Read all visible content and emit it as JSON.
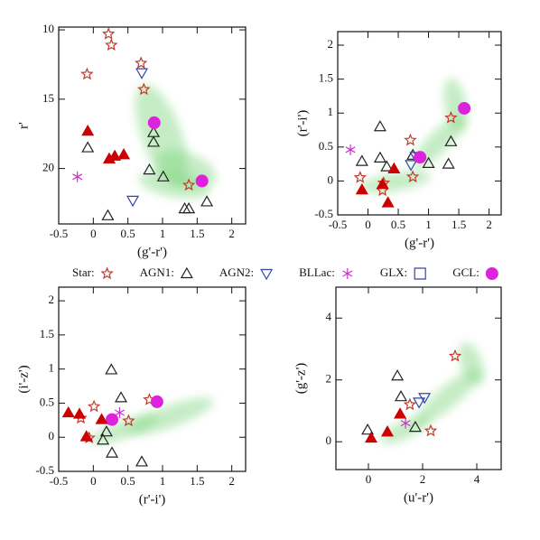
{
  "chart_data": [
    {
      "type": "scatter",
      "x_label": "(g'-r')",
      "y_label": "r'",
      "xlim": [
        -0.5,
        2.2
      ],
      "ylim": [
        24,
        9.8
      ],
      "xticks": [
        -0.5,
        0,
        0.5,
        1,
        1.5,
        2
      ],
      "yticks": [
        10,
        15,
        20
      ],
      "legend": "below",
      "series": [
        {
          "name": "Star:",
          "marker": "star",
          "color": "#c0392b",
          "x": [
            0.22,
            0.26,
            -0.09,
            0.69,
            0.73,
            1.38
          ],
          "values": [
            10.3,
            11.1,
            13.2,
            12.4,
            14.3,
            21.2
          ]
        },
        {
          "name": "AGN1:",
          "marker": "triangle",
          "color": "#222222",
          "x": [
            -0.08,
            0.87,
            0.87,
            0.81,
            1.01,
            0.21,
            1.32,
            1.38,
            1.64
          ],
          "values": [
            18.5,
            17.4,
            18.1,
            20.1,
            20.6,
            23.4,
            22.9,
            22.9,
            22.4
          ]
        },
        {
          "name": "AGN2:",
          "marker": "triangle-down",
          "color": "#3344aa",
          "x": [
            0.7,
            0.57
          ],
          "values": [
            13.1,
            22.3
          ]
        },
        {
          "name": "BLLac:",
          "marker": "asterisk",
          "color": "#cc33cc",
          "x": [
            -0.23
          ],
          "values": [
            20.6
          ]
        },
        {
          "name": "GLX:",
          "marker": "square",
          "color": "#3344aa",
          "x": [],
          "values": []
        },
        {
          "name": "GCL:",
          "marker": "circle",
          "color": "#dd22dd",
          "x": [
            0.88,
            1.57
          ],
          "values": [
            16.7,
            20.9
          ]
        },
        {
          "marker": "triangle-filled",
          "color": "#cc0000",
          "x": [
            -0.08,
            0.23,
            0.31,
            0.44
          ],
          "values": [
            17.3,
            19.3,
            19.1,
            19.0
          ]
        }
      ]
    },
    {
      "type": "scatter",
      "x_label": "(g'-r')",
      "y_label": "(r'-i')",
      "xlim": [
        -0.5,
        2.2
      ],
      "ylim": [
        -0.5,
        2.2
      ],
      "xticks": [
        -0.5,
        0,
        0.5,
        1,
        1.5,
        2
      ],
      "yticks": [
        -0.5,
        0,
        0.5,
        1,
        1.5,
        2
      ],
      "series": [
        {
          "marker": "star",
          "color": "#c0392b",
          "x": [
            0.7,
            -0.13,
            0.26,
            0.74,
            1.37,
            0.24
          ],
          "values": [
            0.6,
            0.05,
            -0.03,
            0.06,
            0.93,
            -0.14
          ]
        },
        {
          "marker": "triangle",
          "color": "#222222",
          "x": [
            0.2,
            -0.1,
            0.2,
            0.31,
            0.74,
            1.0,
            1.33,
            1.37
          ],
          "values": [
            0.8,
            0.29,
            0.34,
            0.21,
            0.38,
            0.26,
            0.25,
            0.58
          ]
        },
        {
          "marker": "triangle-down",
          "color": "#3344aa",
          "x": [
            0.71,
            0.79
          ],
          "values": [
            0.24,
            0.36
          ]
        },
        {
          "marker": "asterisk",
          "color": "#cc33cc",
          "x": [
            -0.29
          ],
          "values": [
            0.46
          ]
        },
        {
          "marker": "circle",
          "color": "#dd22dd",
          "x": [
            0.86,
            1.59
          ],
          "values": [
            0.35,
            1.07
          ]
        },
        {
          "marker": "triangle-filled",
          "color": "#cc0000",
          "x": [
            -0.1,
            0.24,
            0.43,
            0.33
          ],
          "values": [
            -0.13,
            -0.05,
            0.18,
            -0.32
          ]
        }
      ]
    },
    {
      "type": "scatter",
      "x_label": "(r'-i')",
      "y_label": "(i'-z')",
      "xlim": [
        -0.5,
        2.2
      ],
      "ylim": [
        -0.5,
        2.2
      ],
      "xticks": [
        -0.5,
        0,
        0.5,
        1,
        1.5,
        2
      ],
      "yticks": [
        -0.5,
        0,
        0.5,
        1,
        1.5,
        2
      ],
      "series": [
        {
          "marker": "star",
          "color": "#c0392b",
          "x": [
            0.01,
            -0.18,
            0.81,
            0.51,
            -0.06
          ],
          "values": [
            0.45,
            0.28,
            0.55,
            0.24,
            -0.01
          ]
        },
        {
          "marker": "triangle",
          "color": "#222222",
          "x": [
            0.26,
            0.4,
            0.19,
            0.14,
            0.27,
            0.7
          ],
          "values": [
            0.99,
            0.58,
            0.08,
            -0.04,
            -0.23,
            -0.36
          ]
        },
        {
          "marker": "asterisk",
          "color": "#cc33cc",
          "x": [
            0.38
          ],
          "values": [
            0.36
          ]
        },
        {
          "marker": "circle",
          "color": "#dd22dd",
          "x": [
            0.27,
            0.92
          ],
          "values": [
            0.26,
            0.52
          ]
        },
        {
          "marker": "triangle-filled",
          "color": "#cc0000",
          "x": [
            -0.36,
            -0.2,
            -0.1,
            0.12
          ],
          "values": [
            0.36,
            0.34,
            0.01,
            0.26
          ]
        }
      ]
    },
    {
      "type": "scatter",
      "x_label": "(u'-r')",
      "y_label": "(g'-z')",
      "xlim": [
        -1.2,
        4.9
      ],
      "ylim": [
        -0.9,
        5
      ],
      "xticks": [
        0,
        2,
        4
      ],
      "yticks": [
        0,
        2,
        4
      ],
      "series": [
        {
          "marker": "star",
          "color": "#c0392b",
          "x": [
            2.3,
            1.53,
            3.2
          ],
          "values": [
            0.35,
            1.2,
            2.77
          ]
        },
        {
          "marker": "triangle",
          "color": "#222222",
          "x": [
            -0.03,
            1.07,
            1.2,
            1.73
          ],
          "values": [
            0.38,
            2.13,
            1.46,
            0.47
          ]
        },
        {
          "marker": "triangle-down",
          "color": "#3344aa",
          "x": [
            1.87,
            2.07
          ],
          "values": [
            1.28,
            1.43
          ]
        },
        {
          "marker": "asterisk",
          "color": "#cc33cc",
          "x": [
            1.37
          ],
          "values": [
            0.6
          ]
        },
        {
          "marker": "triangle-filled",
          "color": "#cc0000",
          "x": [
            0.1,
            0.7,
            1.17
          ],
          "values": [
            0.12,
            0.32,
            0.9
          ]
        }
      ]
    }
  ]
}
